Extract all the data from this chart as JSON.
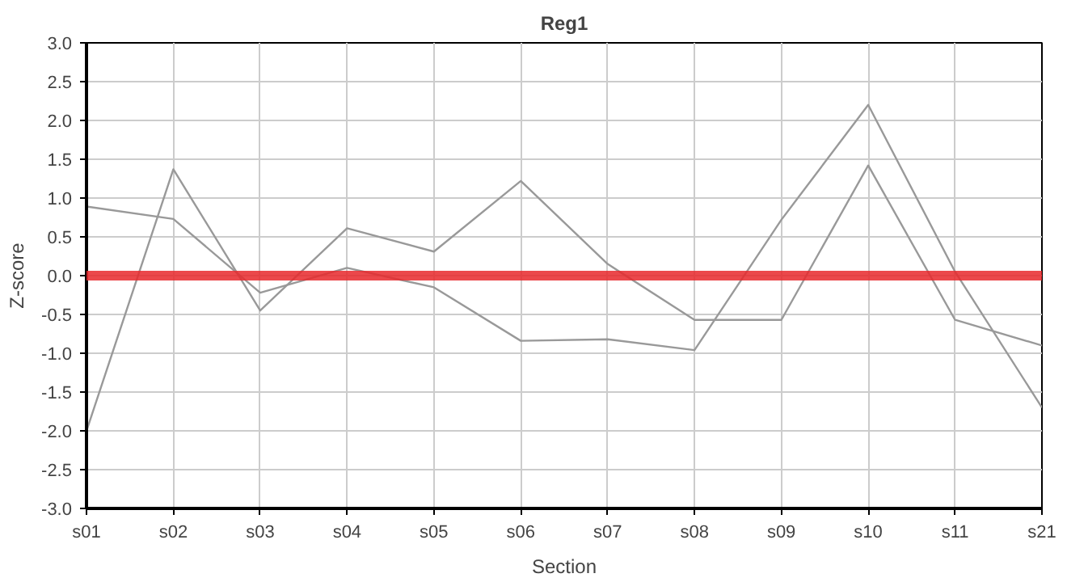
{
  "chart_data": {
    "type": "line",
    "title": "Reg1",
    "xlabel": "Section",
    "ylabel": "Z-score",
    "categories": [
      "s01",
      "s02",
      "s03",
      "s04",
      "s05",
      "s06",
      "s07",
      "s08",
      "s09",
      "s10",
      "s11",
      "s21"
    ],
    "series": [
      {
        "color": "#999999",
        "values": [
          -2.0,
          1.37,
          -0.45,
          0.61,
          0.31,
          1.22,
          0.15,
          -0.57,
          -0.57,
          1.42,
          -0.57,
          -0.9
        ]
      },
      {
        "color": "#999999",
        "values": [
          0.89,
          0.73,
          -0.22,
          0.1,
          -0.15,
          -0.84,
          -0.82,
          -0.96,
          0.72,
          2.2,
          0.05,
          -1.7
        ]
      }
    ],
    "ylim": [
      -3.0,
      3.0
    ],
    "yticks": [
      {
        "value": -3,
        "label": "-3.0"
      },
      {
        "value": -2.5,
        "label": "-2.5"
      },
      {
        "value": -2,
        "label": "-2.0"
      },
      {
        "value": -1.5,
        "label": "-1.5"
      },
      {
        "value": -1,
        "label": "-1.0"
      },
      {
        "value": -0.5,
        "label": "-0.5"
      },
      {
        "value": 0,
        "label": "0.0"
      },
      {
        "value": 0.5,
        "label": "0.5"
      },
      {
        "value": 1,
        "label": "1.0"
      },
      {
        "value": 1.5,
        "label": "1.5"
      },
      {
        "value": 2,
        "label": "2.0"
      },
      {
        "value": 2.5,
        "label": "2.5"
      },
      {
        "value": 3,
        "label": "3.0"
      }
    ],
    "ref_lines": [
      {
        "axis": "y",
        "value": 0,
        "color": "#e8282b"
      }
    ],
    "grid": true,
    "marker": "none",
    "line_style": "solid"
  }
}
